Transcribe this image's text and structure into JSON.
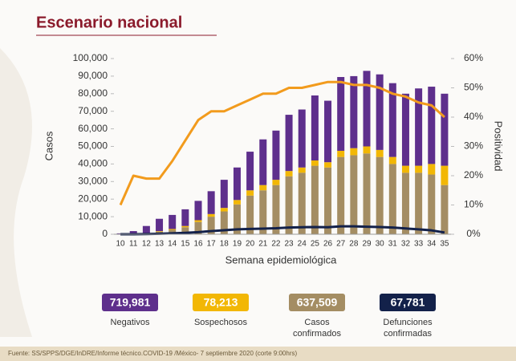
{
  "title": "Escenario nacional",
  "chart_data": {
    "type": "bar",
    "categories": [
      "10",
      "11",
      "12",
      "13",
      "14",
      "15",
      "16",
      "17",
      "18",
      "19",
      "20",
      "21",
      "22",
      "23",
      "24",
      "25",
      "26",
      "27",
      "28",
      "29",
      "30",
      "31",
      "32",
      "33",
      "34",
      "35"
    ],
    "ylabel": "Casos",
    "y2label": "Positividad",
    "xlabel": "Semana epidemiológica",
    "ylim": [
      0,
      100000
    ],
    "yticks": [
      0,
      {
        "value": 10000,
        "label": "10,000"
      },
      {
        "value": 20000,
        "label": "20,000"
      },
      {
        "value": 30000,
        "label": "30,000"
      },
      {
        "value": 40000,
        "label": "40,000"
      },
      {
        "value": 50000,
        "label": "50,000"
      },
      {
        "value": 60000,
        "label": "60,000"
      },
      {
        "value": 70000,
        "label": "70,000"
      },
      {
        "value": 80000,
        "label": "80,000"
      },
      {
        "value": 90000,
        "label": "90,000"
      },
      {
        "value": 100000,
        "label": "100,000"
      }
    ],
    "y2lim": [
      0,
      60
    ],
    "y2ticks": [
      {
        "value": 0,
        "label": "0%"
      },
      {
        "value": 10,
        "label": "10%"
      },
      {
        "value": 20,
        "label": "20%"
      },
      {
        "value": 30,
        "label": "30%"
      },
      {
        "value": 40,
        "label": "40%"
      },
      {
        "value": 50,
        "label": "50%"
      },
      {
        "value": 60,
        "label": "60%"
      }
    ],
    "series": [
      {
        "type": "bar",
        "color": "#a48d63",
        "values": [
          0,
          200,
          500,
          1500,
          2500,
          4000,
          7000,
          10000,
          13000,
          17000,
          22000,
          25000,
          28000,
          33000,
          35000,
          39000,
          38000,
          44000,
          45000,
          46000,
          44000,
          40000,
          35000,
          35000,
          34000,
          28000
        ]
      },
      {
        "type": "bar",
        "color": "#f2b705",
        "values": [
          0,
          100,
          200,
          300,
          500,
          700,
          1000,
          1500,
          2000,
          2500,
          3000,
          3000,
          3000,
          3000,
          3000,
          3000,
          3000,
          3500,
          4000,
          4000,
          4000,
          4000,
          4000,
          4000,
          6000,
          11000
        ]
      },
      {
        "type": "bar",
        "color": "#5e2f8c",
        "values": [
          500,
          1500,
          4000,
          7000,
          8000,
          9500,
          11000,
          13000,
          16000,
          18500,
          22000,
          26000,
          28000,
          32000,
          33000,
          37000,
          35000,
          42000,
          41000,
          43000,
          43000,
          42000,
          41000,
          44000,
          44000,
          41000
        ]
      },
      {
        "type": "line",
        "color": "#13214a",
        "values": [
          0,
          0,
          100,
          300,
          500,
          800,
          1200,
          1800,
          2300,
          2800,
          3000,
          3200,
          3400,
          3800,
          4000,
          4100,
          4000,
          4500,
          4500,
          4300,
          4100,
          3800,
          3300,
          2800,
          2200,
          1000
        ]
      },
      {
        "type": "line",
        "axis": "y2",
        "color": "#f29b1d",
        "values": [
          10,
          20,
          19,
          19,
          25,
          32,
          39,
          42,
          42,
          44,
          46,
          48,
          48,
          50,
          50,
          51,
          52,
          52,
          51,
          51,
          50,
          48,
          47,
          45,
          44,
          40
        ]
      }
    ]
  },
  "summary": [
    {
      "value": "719,981",
      "caption": [
        "Negativos"
      ],
      "color": "#5e2f8c"
    },
    {
      "value": "78,213",
      "caption": [
        "Sospechosos"
      ],
      "color": "#f2b705"
    },
    {
      "value": "637,509",
      "caption": [
        "Casos",
        "confirmados"
      ],
      "color": "#a48d63"
    },
    {
      "value": "67,781",
      "caption": [
        "Defunciones",
        "confirmadas"
      ],
      "color": "#13214a"
    }
  ],
  "footer": "Fuente: SS/SPPS/DGE/InDRE/Informe técnico.COVID-19 /México- 7 septiembre 2020 (corte 9:00hrs)"
}
